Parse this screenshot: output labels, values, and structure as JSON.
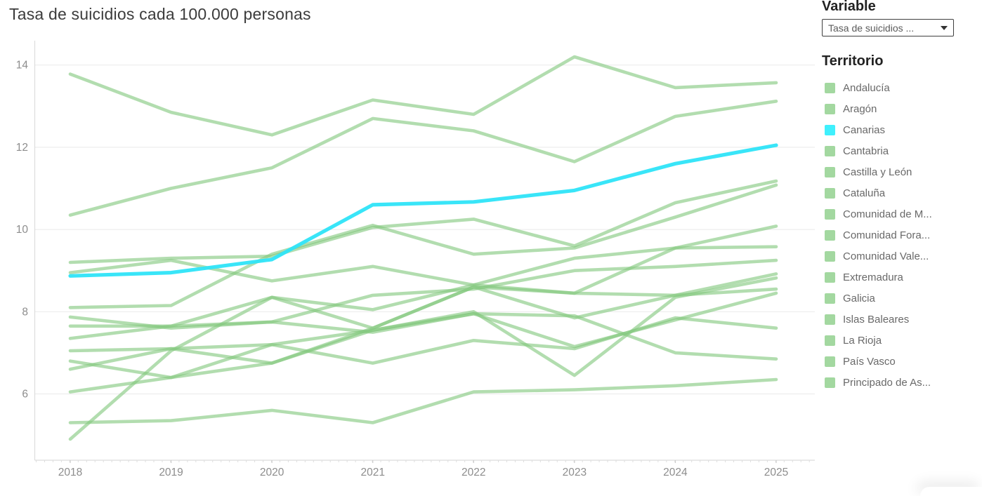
{
  "title": "Tasa de suicidios cada 100.000 personas",
  "variable_panel": {
    "heading": "Variable",
    "dropdown_value": "Tasa de suicidios ...",
    "dropdown_icon": "caret-down-icon"
  },
  "territory_panel": {
    "heading": "Territorio"
  },
  "colors": {
    "green_line": "#82c87e",
    "cyan_line": "#2ee4f8",
    "legend_green": "#a3d8a0",
    "legend_cyan": "#3ff0fd",
    "gridline": "#ededed",
    "axis_line": "#dcdcdc",
    "tick": "#cccccc",
    "axis_text": "#8d8d8d",
    "title_text": "#3c3c3c"
  },
  "chart_data": {
    "type": "line",
    "title": "Tasa de suicidios cada 100.000 personas",
    "x": [
      2018,
      2019,
      2020,
      2021,
      2022,
      2023,
      2024,
      2025
    ],
    "x_tick_labels": [
      "2018",
      "2019",
      "2020",
      "2021",
      "2022",
      "2023",
      "2024",
      "2025"
    ],
    "y_ticks": [
      6,
      8,
      10,
      12,
      14
    ],
    "ylim": [
      4.2,
      14.6
    ],
    "grid": "horizontal",
    "legend_position": "right",
    "highlighted_series": "Canarias",
    "series": [
      {
        "name": "Andalucía",
        "highlight": false,
        "values": [
          8.1,
          8.15,
          9.4,
          10.1,
          9.4,
          9.55,
          10.3,
          11.08
        ]
      },
      {
        "name": "Aragón",
        "highlight": false,
        "values": [
          9.2,
          9.3,
          9.35,
          10.05,
          10.25,
          9.6,
          10.65,
          11.18
        ]
      },
      {
        "name": "Canarias",
        "highlight": true,
        "values": [
          8.87,
          8.95,
          9.27,
          10.6,
          10.67,
          10.95,
          11.6,
          12.05
        ]
      },
      {
        "name": "Cantabria",
        "highlight": false,
        "values": [
          6.05,
          6.4,
          7.2,
          6.75,
          7.3,
          7.1,
          7.85,
          7.6
        ]
      },
      {
        "name": "Castilla y León",
        "highlight": false,
        "values": [
          8.95,
          9.25,
          8.75,
          9.1,
          8.65,
          9.3,
          9.55,
          10.08
        ]
      },
      {
        "name": "Cataluña",
        "highlight": false,
        "values": [
          7.65,
          7.65,
          8.35,
          8.05,
          8.65,
          8.45,
          9.55,
          9.58
        ]
      },
      {
        "name": "Comunidad de M...",
        "highlight": false,
        "values": [
          5.3,
          5.35,
          5.6,
          5.3,
          6.05,
          6.1,
          6.2,
          6.35
        ]
      },
      {
        "name": "Comunidad Fora...",
        "highlight": false,
        "values": [
          7.05,
          7.1,
          7.2,
          7.55,
          7.95,
          7.9,
          7.0,
          6.85
        ]
      },
      {
        "name": "Comunidad Vale...",
        "highlight": false,
        "values": [
          7.35,
          7.65,
          7.75,
          8.4,
          8.55,
          9.0,
          9.1,
          9.25
        ]
      },
      {
        "name": "Extremadura",
        "highlight": false,
        "values": [
          6.8,
          6.4,
          6.75,
          7.55,
          8.0,
          6.45,
          8.35,
          8.82
        ]
      },
      {
        "name": "Galicia",
        "highlight": false,
        "values": [
          10.35,
          11.0,
          11.5,
          12.7,
          12.4,
          11.65,
          12.75,
          13.12
        ]
      },
      {
        "name": "Islas Baleares",
        "highlight": false,
        "values": [
          4.9,
          7.05,
          8.35,
          7.6,
          8.6,
          7.85,
          8.4,
          8.92
        ]
      },
      {
        "name": "La Rioja",
        "highlight": false,
        "values": [
          7.87,
          7.6,
          7.75,
          7.5,
          7.95,
          7.15,
          7.8,
          8.45
        ]
      },
      {
        "name": "País Vasco",
        "highlight": false,
        "values": [
          6.6,
          7.1,
          6.75,
          7.6,
          8.6,
          8.45,
          8.4,
          8.55
        ]
      },
      {
        "name": "Principado de As...",
        "highlight": false,
        "values": [
          13.78,
          12.85,
          12.3,
          13.15,
          12.8,
          14.2,
          13.45,
          13.57
        ]
      }
    ]
  }
}
